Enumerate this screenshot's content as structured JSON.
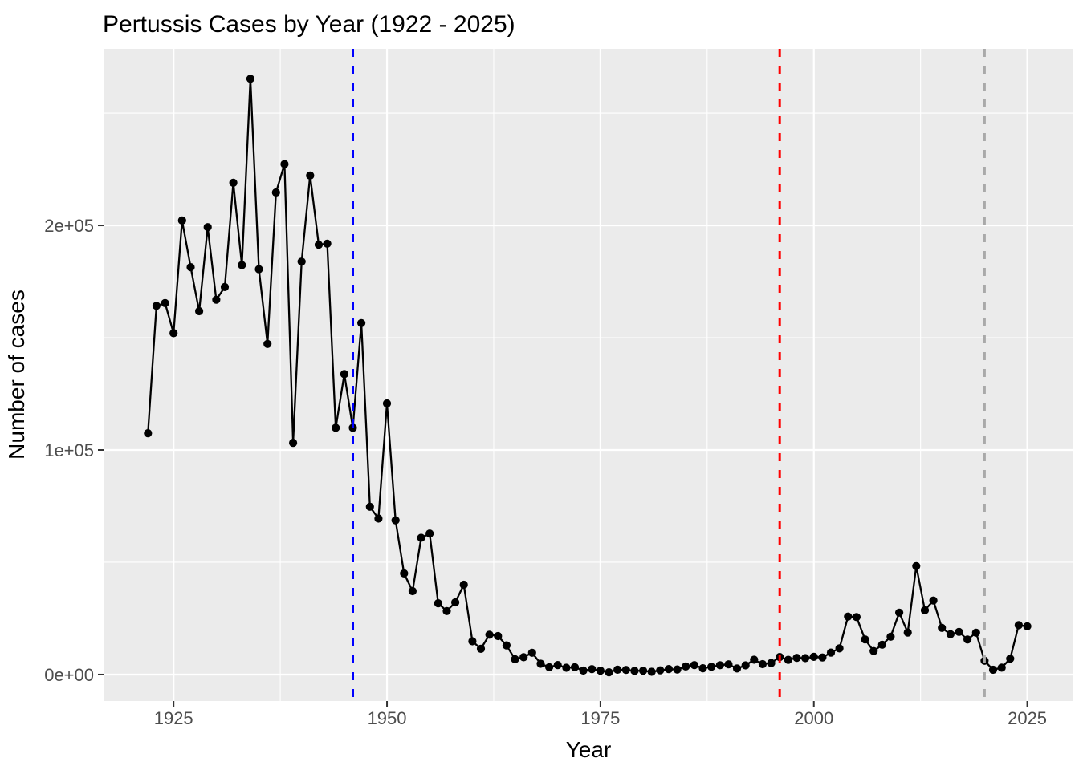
{
  "chart_data": {
    "type": "line",
    "title": "Pertussis Cases by Year (1922 - 2025)",
    "xlabel": "Year",
    "ylabel": "Number of cases",
    "xlim": [
      1916.8,
      2030.4
    ],
    "ylim": [
      -11800,
      278600
    ],
    "x_ticks": [
      1925,
      1950,
      1975,
      2000,
      2025
    ],
    "y_ticks": [
      {
        "value": 0,
        "label": "0e+00"
      },
      {
        "value": 100000,
        "label": "1e+05"
      },
      {
        "value": 200000,
        "label": "2e+05"
      }
    ],
    "x_minor_breaks": [
      1937.5,
      1962.5,
      1987.5,
      2012.5
    ],
    "y_minor_breaks": [
      50000,
      150000,
      250000
    ],
    "grid": true,
    "legend": false,
    "x": [
      1922,
      1923,
      1924,
      1925,
      1926,
      1927,
      1928,
      1929,
      1930,
      1931,
      1932,
      1933,
      1934,
      1935,
      1936,
      1937,
      1938,
      1939,
      1940,
      1941,
      1942,
      1943,
      1944,
      1945,
      1946,
      1947,
      1948,
      1949,
      1950,
      1951,
      1952,
      1953,
      1954,
      1955,
      1956,
      1957,
      1958,
      1959,
      1960,
      1961,
      1962,
      1963,
      1964,
      1965,
      1966,
      1967,
      1968,
      1969,
      1970,
      1971,
      1972,
      1973,
      1974,
      1975,
      1976,
      1977,
      1978,
      1979,
      1980,
      1981,
      1982,
      1983,
      1984,
      1985,
      1986,
      1987,
      1988,
      1989,
      1990,
      1991,
      1992,
      1993,
      1994,
      1995,
      1996,
      1997,
      1998,
      1999,
      2000,
      2001,
      2002,
      2003,
      2004,
      2005,
      2006,
      2007,
      2008,
      2009,
      2010,
      2011,
      2012,
      2013,
      2014,
      2015,
      2016,
      2017,
      2018,
      2019,
      2020,
      2021,
      2022,
      2023,
      2024,
      2025
    ],
    "y": [
      107473,
      164191,
      165418,
      152003,
      202210,
      181411,
      161799,
      199249,
      166914,
      172559,
      218973,
      182338,
      265269,
      180518,
      147237,
      214652,
      227319,
      103188,
      183866,
      222202,
      191383,
      191890,
      109873,
      133792,
      109860,
      156517,
      74715,
      69479,
      120718,
      68687,
      45030,
      37129,
      60886,
      62786,
      31732,
      28295,
      32148,
      40005,
      14809,
      11468,
      17749,
      17135,
      13005,
      6799,
      7717,
      9718,
      4810,
      3285,
      4249,
      3036,
      3287,
      1759,
      2402,
      1738,
      1010,
      2177,
      2063,
      1623,
      1730,
      1248,
      1895,
      2463,
      2276,
      3589,
      4195,
      2823,
      3450,
      4157,
      4570,
      2719,
      4083,
      6586,
      4617,
      5137,
      7796,
      6564,
      7405,
      7298,
      7867,
      7580,
      9771,
      11647,
      25827,
      25616,
      15632,
      10454,
      13278,
      16858,
      27550,
      18719,
      48277,
      28639,
      32971,
      20762,
      17972,
      18975,
      15609,
      18617,
      6124,
      2116,
      3044,
      7063,
      22000,
      21500
    ],
    "vlines": [
      {
        "x": 1946,
        "color": "#0000FF",
        "style": "dashed"
      },
      {
        "x": 1996,
        "color": "#FF0000",
        "style": "dashed"
      },
      {
        "x": 2020,
        "color": "#A9A9A9",
        "style": "dashed"
      }
    ],
    "colors": {
      "series": "#000000",
      "panel_background": "#EBEBEB",
      "gridline": "#FFFFFF",
      "tick_mark": "#333333",
      "tick_label": "#4D4D4D",
      "title": "#000000"
    }
  }
}
